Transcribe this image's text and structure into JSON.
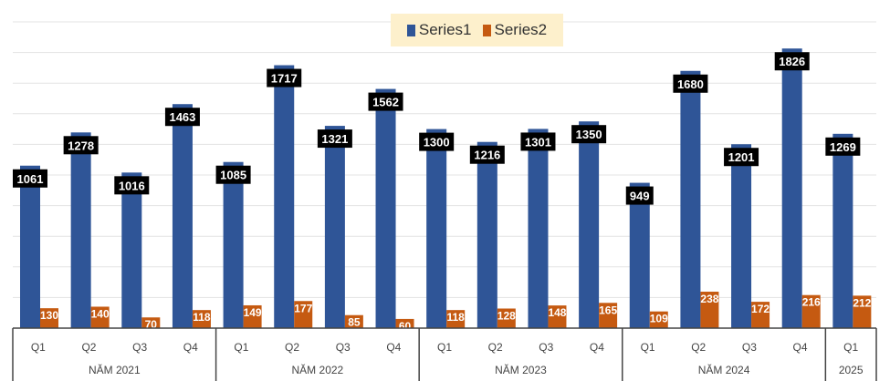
{
  "chart_data": {
    "type": "bar",
    "title": "",
    "xlabel": "",
    "ylabel": "",
    "ylim": [
      0,
      2000
    ],
    "grid": true,
    "legend_position": "top-center",
    "categories": [
      "Q1",
      "Q2",
      "Q3",
      "Q4",
      "Q1",
      "Q2",
      "Q3",
      "Q4",
      "Q1",
      "Q2",
      "Q3",
      "Q4",
      "Q1",
      "Q2",
      "Q3",
      "Q4",
      "Q1"
    ],
    "groups": [
      {
        "label": "NĂM 2021",
        "count": 4
      },
      {
        "label": "NĂM 2022",
        "count": 4
      },
      {
        "label": "NĂM 2023",
        "count": 4
      },
      {
        "label": "NĂM 2024",
        "count": 4
      },
      {
        "label": "2025",
        "count": 1
      }
    ],
    "series": [
      {
        "name": "Series1",
        "color": "#2f5597",
        "values": [
          1061,
          1278,
          1016,
          1463,
          1085,
          1717,
          1321,
          1562,
          1300,
          1216,
          1301,
          1350,
          949,
          1680,
          1201,
          1826,
          1269
        ]
      },
      {
        "name": "Series2",
        "color": "#c55a11",
        "values": [
          130,
          140,
          70,
          118,
          149,
          177,
          85,
          60,
          118,
          128,
          148,
          165,
          109,
          238,
          172,
          216,
          212
        ]
      }
    ]
  }
}
